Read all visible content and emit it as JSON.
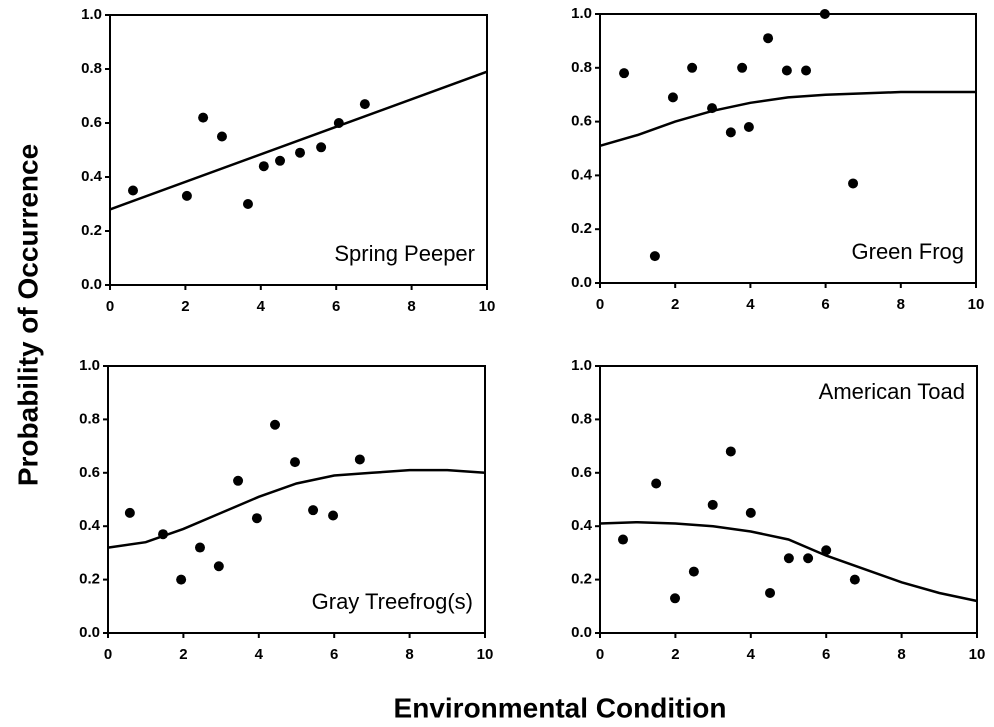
{
  "ylabel": "Probability of Occurrence",
  "xlabel": "Environmental Condition",
  "chart_data": [
    {
      "type": "scatter",
      "label": "Spring Peeper",
      "label_corner": "lower right",
      "color": "#000000",
      "x": [
        0.61,
        2.04,
        2.47,
        2.97,
        3.66,
        4.08,
        4.51,
        5.04,
        5.6,
        6.07,
        6.76
      ],
      "values": [
        0.35,
        0.33,
        0.62,
        0.55,
        0.3,
        0.44,
        0.46,
        0.49,
        0.51,
        0.6,
        0.67
      ],
      "fit": {
        "x": [
          0,
          10
        ],
        "values": [
          0.28,
          0.79
        ]
      },
      "xlim": [
        0,
        10
      ],
      "ylim": [
        0,
        1
      ],
      "xticks": [
        0,
        2,
        4,
        6,
        8,
        10
      ],
      "yticks": [
        {
          "value": 0,
          "label": "0.0"
        },
        0.2,
        0.4,
        0.6,
        0.8,
        {
          "value": 1,
          "label": "1.0"
        }
      ]
    },
    {
      "type": "scatter",
      "label": "Green Frog",
      "label_corner": "lower right",
      "color": "#000000",
      "x": [
        0.64,
        1.94,
        2.45,
        1.46,
        2.98,
        3.48,
        3.96,
        3.78,
        4.47,
        4.97,
        5.48,
        5.98,
        6.73
      ],
      "values": [
        0.78,
        0.69,
        0.8,
        0.1,
        0.65,
        0.56,
        0.58,
        0.8,
        0.91,
        0.79,
        0.79,
        1.0,
        0.37
      ],
      "fit": {
        "x": [
          0,
          1,
          2,
          3,
          4,
          5,
          6,
          7,
          8,
          9,
          10
        ],
        "values": [
          0.51,
          0.55,
          0.6,
          0.64,
          0.67,
          0.69,
          0.7,
          0.705,
          0.71,
          0.71,
          0.71
        ]
      },
      "xlim": [
        0,
        10
      ],
      "ylim": [
        0,
        1
      ],
      "xticks": [
        0,
        2,
        4,
        6,
        8,
        10
      ],
      "yticks": [
        {
          "value": 0,
          "label": "0.0"
        },
        0.2,
        0.4,
        0.6,
        0.8,
        {
          "value": 1,
          "label": "1.0"
        }
      ]
    },
    {
      "type": "scatter",
      "label": "Gray Treefrog(s)",
      "label_corner": "lower right",
      "color": "#000000",
      "x": [
        0.58,
        1.46,
        1.94,
        2.44,
        2.94,
        3.45,
        3.95,
        4.43,
        4.96,
        5.44,
        5.97,
        6.68
      ],
      "values": [
        0.45,
        0.37,
        0.2,
        0.32,
        0.25,
        0.57,
        0.43,
        0.78,
        0.64,
        0.46,
        0.44,
        0.65
      ],
      "fit": {
        "x": [
          0,
          1,
          2,
          3,
          4,
          5,
          6,
          7,
          8,
          9,
          10
        ],
        "values": [
          0.32,
          0.34,
          0.39,
          0.45,
          0.51,
          0.56,
          0.59,
          0.6,
          0.61,
          0.61,
          0.6
        ]
      },
      "xlim": [
        0,
        10
      ],
      "ylim": [
        0,
        1
      ],
      "xticks": [
        0,
        2,
        4,
        6,
        8,
        10
      ],
      "yticks": [
        {
          "value": 0,
          "label": "0.0"
        },
        0.2,
        0.4,
        0.6,
        0.8,
        {
          "value": 1,
          "label": "1.0"
        }
      ]
    },
    {
      "type": "scatter",
      "label": "American Toad",
      "label_corner": "upper right",
      "color": "#000000",
      "x": [
        0.61,
        1.49,
        1.99,
        2.49,
        2.99,
        3.47,
        4.0,
        4.51,
        5.01,
        5.52,
        6.0,
        6.76
      ],
      "values": [
        0.35,
        0.56,
        0.13,
        0.23,
        0.48,
        0.68,
        0.45,
        0.15,
        0.28,
        0.28,
        0.31,
        0.2
      ],
      "fit": {
        "x": [
          0,
          1,
          2,
          3,
          4,
          5,
          6,
          7,
          8,
          9,
          10
        ],
        "values": [
          0.41,
          0.415,
          0.41,
          0.4,
          0.38,
          0.35,
          0.29,
          0.24,
          0.19,
          0.15,
          0.12
        ]
      },
      "xlim": [
        0,
        10
      ],
      "ylim": [
        0,
        1
      ],
      "xticks": [
        0,
        2,
        4,
        6,
        8,
        10
      ],
      "yticks": [
        {
          "value": 0,
          "label": "0.0"
        },
        0.2,
        0.4,
        0.6,
        0.8,
        {
          "value": 1,
          "label": "1.0"
        }
      ]
    }
  ]
}
